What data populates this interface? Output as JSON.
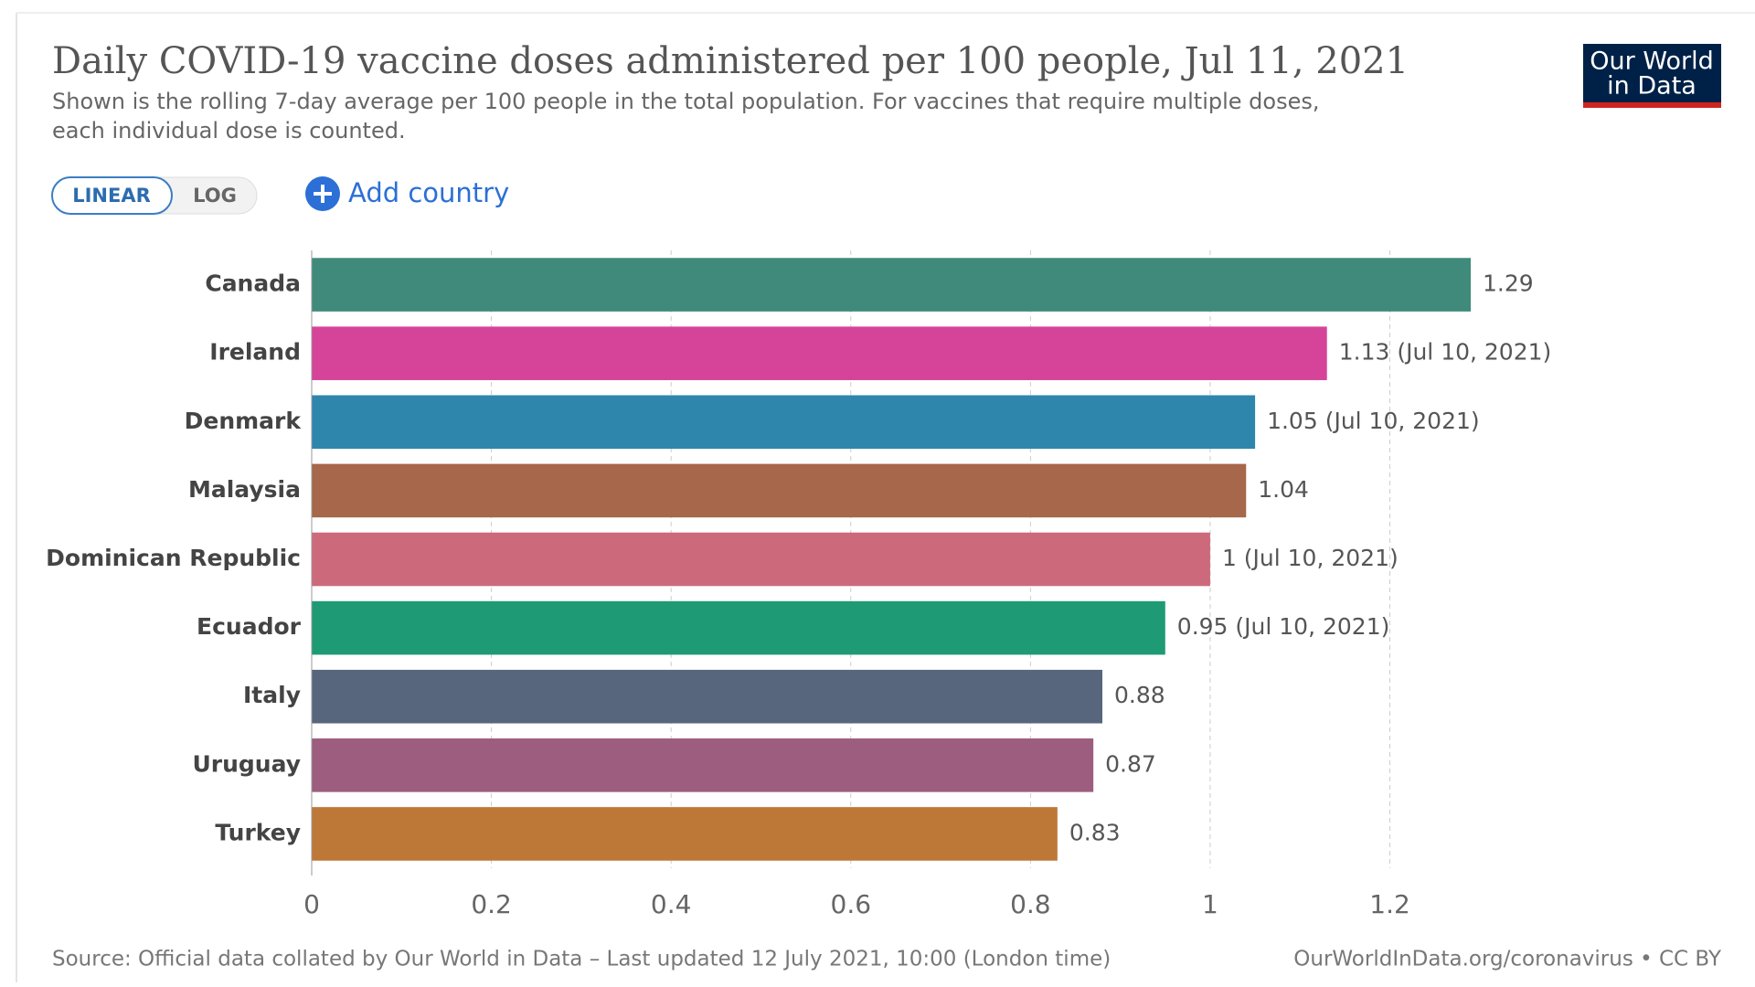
{
  "chart_data": {
    "type": "bar",
    "orientation": "horizontal",
    "title": "Daily COVID-19 vaccine doses administered per 100 people, Jul 11, 2021",
    "subtitle": [
      "Shown is the rolling 7-day average per 100 people in the total population. For vaccines that require multiple doses,",
      "each individual dose is counted."
    ],
    "controls": {
      "linear": "LINEAR",
      "log": "LOG",
      "add_country": "Add country"
    },
    "logo": [
      "Our World",
      "in Data"
    ],
    "categories": [
      "Canada",
      "Ireland",
      "Denmark",
      "Malaysia",
      "Dominican Republic",
      "Ecuador",
      "Italy",
      "Uruguay",
      "Turkey"
    ],
    "values": [
      1.29,
      1.13,
      1.05,
      1.04,
      1,
      0.95,
      0.88,
      0.87,
      0.83
    ],
    "value_labels": [
      "1.29",
      "1.13 (Jul 10, 2021)",
      "1.05 (Jul 10, 2021)",
      "1.04",
      "1 (Jul 10, 2021)",
      "0.95 (Jul 10, 2021)",
      "0.88",
      "0.87",
      "0.83"
    ],
    "colors": [
      "#3f8a7b",
      "#d6449a",
      "#2e86ad",
      "#a6674a",
      "#cc6a7b",
      "#1e9a74",
      "#58667d",
      "#9c5d7e",
      "#bd7838"
    ],
    "xlim": [
      0,
      1.29
    ],
    "xticks": [
      0,
      0.2,
      0.4,
      0.6,
      0.8,
      1,
      1.2
    ],
    "grid": true,
    "source": "Source: Official data collated by Our World in Data – Last updated 12 July 2021, 10:00 (London time)",
    "url": "OurWorldInData.org/coronavirus • CC BY"
  }
}
